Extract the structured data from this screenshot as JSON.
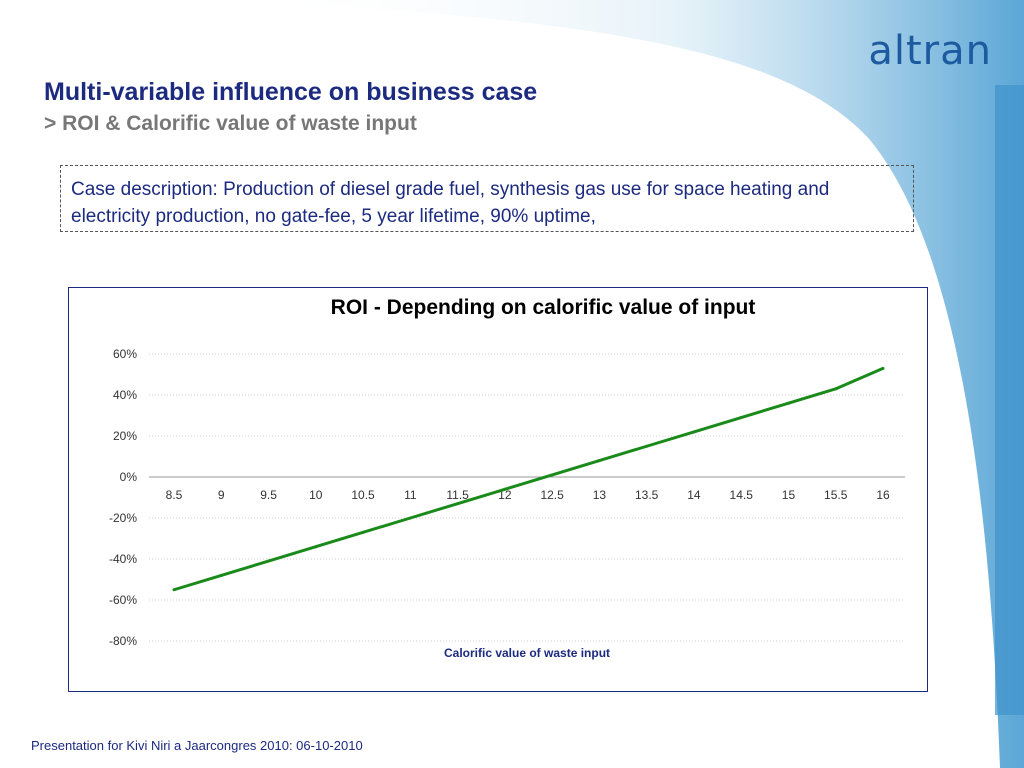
{
  "slide": {
    "brand": "altran",
    "title": "Multi-variable influence on business case",
    "subtitle": "> ROI & Calorific value of waste input",
    "case_description": "Case description: Production of diesel grade fuel, synthesis gas use for space heating and electricity production, no gate-fee, 5 year lifetime, 90% uptime,",
    "footer": "Presentation for Kivi Niri a Jaarcongres 2010: 06-10-2010"
  },
  "colors": {
    "title": "#1c2a80",
    "brand": "#1d5aa0",
    "brand_accent": "#2da8d8",
    "swoosh": "#8cc3e2",
    "series": "#1a8a1a",
    "grid": "#d0d0d0"
  },
  "chart_data": {
    "type": "line",
    "title": "ROI - Depending on calorific value of input",
    "xlabel": "Calorific value of waste input",
    "ylabel": "",
    "categories": [
      "8.5",
      "9",
      "9.5",
      "10",
      "10.5",
      "11",
      "11.5",
      "12",
      "12.5",
      "13",
      "13.5",
      "14",
      "14.5",
      "15",
      "15.5",
      "16"
    ],
    "series": [
      {
        "name": "",
        "values": [
          -0.55,
          -0.48,
          -0.41,
          -0.34,
          -0.27,
          -0.2,
          -0.13,
          -0.06,
          0.01,
          0.08,
          0.15,
          0.22,
          0.29,
          0.36,
          0.43,
          0.53
        ]
      }
    ],
    "ylim": [
      -0.8,
      0.6
    ],
    "yticks": [
      {
        "value": 0.6,
        "label": "60%"
      },
      {
        "value": 0.4,
        "label": "40%"
      },
      {
        "value": 0.2,
        "label": "20%"
      },
      {
        "value": 0,
        "label": "0%"
      },
      {
        "value": -0.2,
        "label": "-20%"
      },
      {
        "value": -0.4,
        "label": "-40%"
      },
      {
        "value": -0.6,
        "label": "-60%"
      },
      {
        "value": -0.8,
        "label": "-80%"
      }
    ],
    "grid": true,
    "legend": "none"
  }
}
